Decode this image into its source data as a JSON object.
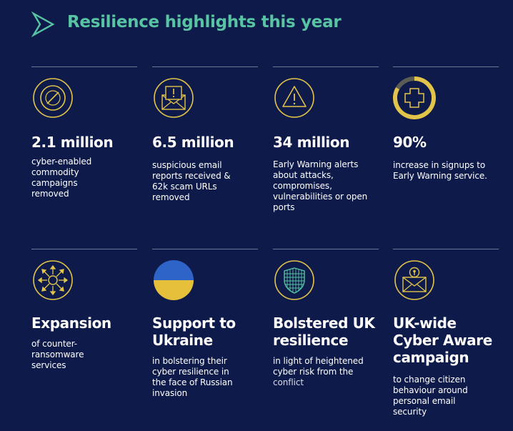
{
  "title": "Resilience highlights this year",
  "colors": {
    "background": "#0e1b4a",
    "accent_green": "#58c4a3",
    "icon_gold": "#e3c44a",
    "flag_blue": "#2e63c7",
    "flag_yellow": "#e6c03a",
    "rule": "#6e7894"
  },
  "cards": [
    {
      "icon": "prohibited-icon",
      "stat": "2.1 million",
      "desc": "cyber-enabled commodity campaigns removed"
    },
    {
      "icon": "email-alert-icon",
      "stat": "6.5 million",
      "desc": "suspicious email reports received & 62k scam URLs removed"
    },
    {
      "icon": "warning-triangle-icon",
      "stat": "34 million",
      "desc": "Early Warning alerts about attacks, compromises, vulnerabilities or open ports"
    },
    {
      "icon": "plus-progress-icon",
      "stat": "90%",
      "desc": "increase in signups to Early Warning service."
    },
    {
      "icon": "expansion-arrows-icon",
      "stat": "Expansion",
      "desc": "of counter-ransomware services"
    },
    {
      "icon": "ukraine-flag-icon",
      "stat": "Support to Ukraine",
      "desc": "in bolstering their cyber resilience in the face of Russian invasion"
    },
    {
      "icon": "shield-grid-icon",
      "stat": "Bolstered UK resilience",
      "desc_main": "in light of heightened cyber risk from the",
      "desc_tail": "conflict"
    },
    {
      "icon": "email-lock-icon",
      "stat": "UK-wide Cyber Aware campaign",
      "desc": "to change citizen behaviour around personal email security"
    }
  ]
}
